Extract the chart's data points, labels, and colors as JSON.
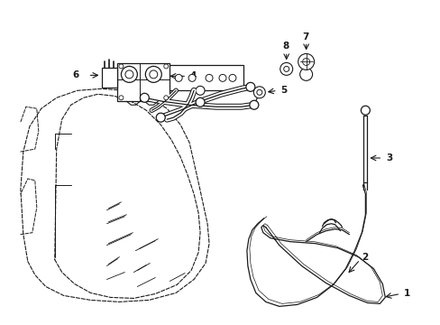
{
  "bg_color": "#ffffff",
  "line_color": "#1a1a1a",
  "lw_main": 0.9,
  "lw_dash": 0.8,
  "lw_thin": 0.5
}
